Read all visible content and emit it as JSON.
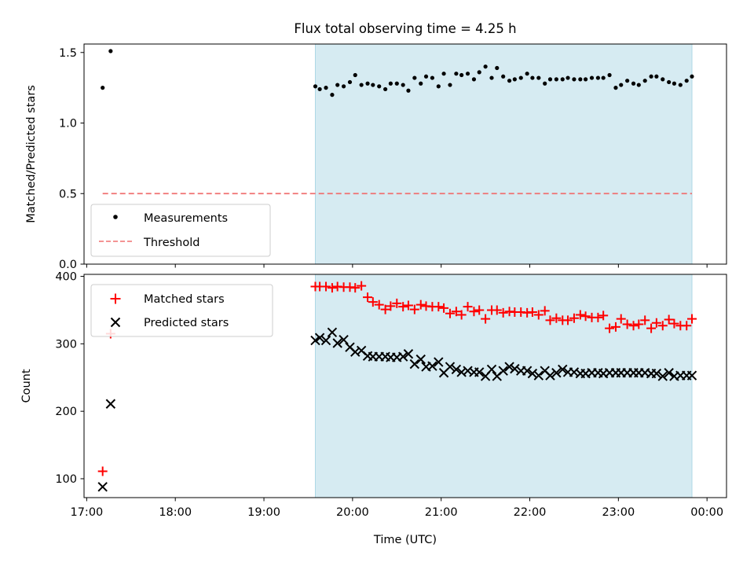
{
  "figure": {
    "title": "Flux total observing time = 4.25 h",
    "xlabel": "Time (UTC)"
  },
  "colors": {
    "measurement": "#000000",
    "threshold": "#f07070",
    "matched": "#ff0000",
    "predicted": "#000000",
    "span": "#add8e6"
  },
  "chart_data": [
    {
      "type": "scatter",
      "title": "Flux total observing time = 4.25 h",
      "xlabel": "",
      "ylabel": "Matched/Predicted stars",
      "x_unit": "UTC hours since 17:00",
      "xlim": [
        16.97,
        24.22
      ],
      "ylim": [
        0.0,
        1.56
      ],
      "yticks": [
        0.0,
        0.5,
        1.0,
        1.5
      ],
      "ytick_labels": [
        "0.0",
        "0.5",
        "1.0",
        "1.5"
      ],
      "highlight_span": [
        19.58,
        23.83
      ],
      "legend": {
        "placement": "lower-left",
        "entries": [
          "Measurements",
          "Threshold"
        ]
      },
      "series": [
        {
          "name": "Measurements",
          "marker": "dot",
          "x": [
            17.18,
            17.27,
            19.58,
            19.63,
            19.7,
            19.77,
            19.83,
            19.9,
            19.97,
            20.03,
            20.1,
            20.17,
            20.23,
            20.3,
            20.37,
            20.43,
            20.5,
            20.57,
            20.63,
            20.7,
            20.77,
            20.83,
            20.9,
            20.97,
            21.03,
            21.1,
            21.17,
            21.23,
            21.3,
            21.37,
            21.43,
            21.5,
            21.57,
            21.63,
            21.7,
            21.77,
            21.83,
            21.9,
            21.97,
            22.03,
            22.1,
            22.17,
            22.23,
            22.3,
            22.37,
            22.43,
            22.5,
            22.57,
            22.63,
            22.7,
            22.77,
            22.83,
            22.9,
            22.97,
            23.03,
            23.1,
            23.17,
            23.23,
            23.3,
            23.37,
            23.43,
            23.5,
            23.57,
            23.63,
            23.7,
            23.77,
            23.83
          ],
          "y": [
            1.25,
            1.51,
            1.26,
            1.24,
            1.25,
            1.2,
            1.27,
            1.26,
            1.29,
            1.34,
            1.27,
            1.28,
            1.27,
            1.26,
            1.24,
            1.28,
            1.28,
            1.27,
            1.23,
            1.32,
            1.28,
            1.33,
            1.32,
            1.26,
            1.35,
            1.27,
            1.35,
            1.34,
            1.35,
            1.31,
            1.36,
            1.4,
            1.32,
            1.39,
            1.33,
            1.3,
            1.31,
            1.32,
            1.35,
            1.32,
            1.32,
            1.28,
            1.31,
            1.31,
            1.31,
            1.32,
            1.31,
            1.31,
            1.31,
            1.32,
            1.32,
            1.32,
            1.34,
            1.25,
            1.27,
            1.3,
            1.28,
            1.27,
            1.3,
            1.33,
            1.33,
            1.31,
            1.29,
            1.28,
            1.27,
            1.3,
            1.33
          ]
        },
        {
          "name": "Threshold",
          "marker": "dashed-line",
          "x": [
            17.18,
            23.83
          ],
          "y": [
            0.5,
            0.5
          ]
        }
      ]
    },
    {
      "type": "scatter",
      "xlabel": "Time (UTC)",
      "ylabel": "Count",
      "x_unit": "UTC hours since 17:00",
      "xlim": [
        16.97,
        24.22
      ],
      "ylim": [
        72,
        403
      ],
      "yticks": [
        100,
        200,
        300,
        400
      ],
      "ytick_labels": [
        "100",
        "200",
        "300",
        "400"
      ],
      "xticks": [
        17,
        18,
        19,
        20,
        21,
        22,
        23,
        24
      ],
      "xtick_labels": [
        "17:00",
        "18:00",
        "19:00",
        "20:00",
        "21:00",
        "22:00",
        "23:00",
        "00:00"
      ],
      "highlight_span": [
        19.58,
        23.83
      ],
      "legend": {
        "placement": "upper-left",
        "entries": [
          "Matched stars",
          "Predicted stars"
        ]
      },
      "series": [
        {
          "name": "Matched stars",
          "marker": "plus",
          "x": [
            17.18,
            17.27,
            19.58,
            19.63,
            19.7,
            19.77,
            19.83,
            19.9,
            19.97,
            20.03,
            20.1,
            20.17,
            20.23,
            20.3,
            20.37,
            20.43,
            20.5,
            20.57,
            20.63,
            20.7,
            20.77,
            20.83,
            20.9,
            20.97,
            21.03,
            21.1,
            21.17,
            21.23,
            21.3,
            21.37,
            21.43,
            21.5,
            21.57,
            21.63,
            21.7,
            21.77,
            21.83,
            21.9,
            21.97,
            22.03,
            22.1,
            22.17,
            22.23,
            22.3,
            22.37,
            22.43,
            22.5,
            22.57,
            22.63,
            22.7,
            22.77,
            22.83,
            22.9,
            22.97,
            23.03,
            23.1,
            23.17,
            23.23,
            23.3,
            23.37,
            23.43,
            23.5,
            23.57,
            23.63,
            23.7,
            23.77,
            23.83
          ],
          "y": [
            111,
            315,
            385,
            385,
            385,
            383,
            385,
            384,
            384,
            383,
            386,
            369,
            362,
            358,
            351,
            356,
            360,
            355,
            357,
            351,
            358,
            356,
            355,
            355,
            353,
            345,
            348,
            343,
            355,
            348,
            350,
            337,
            350,
            350,
            346,
            348,
            347,
            347,
            346,
            347,
            343,
            349,
            335,
            338,
            335,
            335,
            338,
            343,
            341,
            339,
            339,
            342,
            323,
            325,
            337,
            329,
            327,
            329,
            335,
            323,
            331,
            327,
            336,
            330,
            327,
            327,
            337
          ]
        },
        {
          "name": "Predicted stars",
          "marker": "x",
          "x": [
            17.18,
            17.27,
            19.58,
            19.63,
            19.7,
            19.77,
            19.83,
            19.9,
            19.97,
            20.03,
            20.1,
            20.17,
            20.23,
            20.3,
            20.37,
            20.43,
            20.5,
            20.57,
            20.63,
            20.7,
            20.77,
            20.83,
            20.9,
            20.97,
            21.03,
            21.1,
            21.17,
            21.23,
            21.3,
            21.37,
            21.43,
            21.5,
            21.57,
            21.63,
            21.7,
            21.77,
            21.83,
            21.9,
            21.97,
            22.03,
            22.1,
            22.17,
            22.23,
            22.3,
            22.37,
            22.43,
            22.5,
            22.57,
            22.63,
            22.7,
            22.77,
            22.83,
            22.9,
            22.97,
            23.03,
            23.1,
            23.17,
            23.23,
            23.3,
            23.37,
            23.43,
            23.5,
            23.57,
            23.63,
            23.7,
            23.77,
            23.83
          ],
          "y": [
            88,
            211,
            305,
            309,
            305,
            317,
            301,
            306,
            295,
            288,
            290,
            282,
            281,
            281,
            281,
            280,
            280,
            281,
            285,
            270,
            277,
            266,
            267,
            273,
            257,
            266,
            262,
            258,
            260,
            258,
            258,
            252,
            262,
            252,
            260,
            266,
            263,
            260,
            260,
            256,
            253,
            260,
            253,
            257,
            262,
            258,
            258,
            256,
            256,
            257,
            257,
            256,
            257,
            257,
            257,
            257,
            257,
            257,
            257,
            256,
            256,
            252,
            257,
            252,
            253,
            253,
            253
          ]
        }
      ]
    }
  ]
}
